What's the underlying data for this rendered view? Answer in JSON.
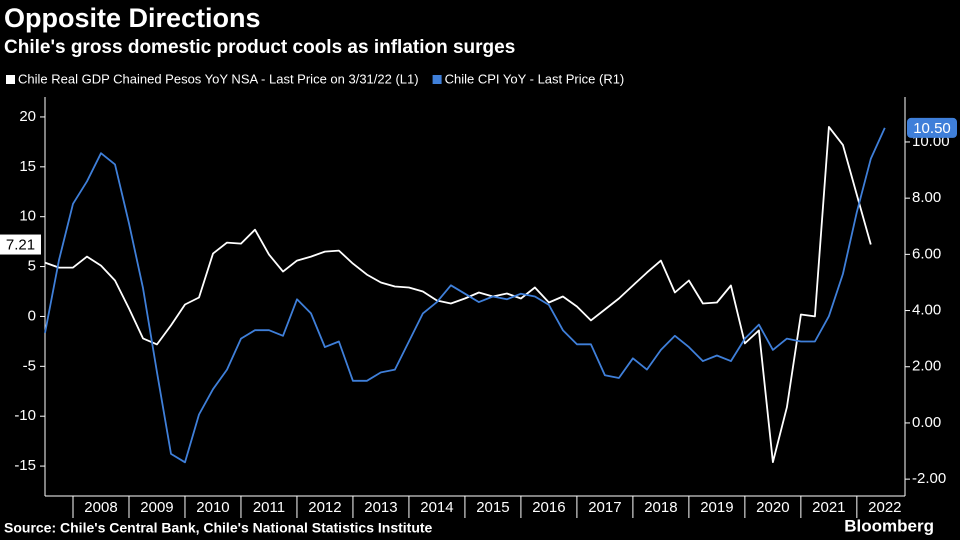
{
  "chart_data": {
    "type": "line",
    "title": "Opposite Directions",
    "subtitle": "Chile's gross domestic product cools as inflation surges",
    "source": "Source: Chile's Central Bank, Chile's National Statistics Institute",
    "brand": "Bloomberg",
    "categories": [
      "2008",
      "2009",
      "2010",
      "2011",
      "2012",
      "2013",
      "2014",
      "2015",
      "2016",
      "2017",
      "2018",
      "2019",
      "2020",
      "2021",
      "2022"
    ],
    "xlim": [
      2007.5,
      2022.86
    ],
    "xticks": [
      2008,
      2009,
      2010,
      2011,
      2012,
      2013,
      2014,
      2015,
      2016,
      2017,
      2018,
      2019,
      2020,
      2021,
      2022
    ],
    "ylim": [
      -18,
      22
    ],
    "yticks": [
      -15,
      -10,
      -5,
      0,
      5,
      10,
      15,
      20
    ],
    "y2lim": [
      -2.6,
      11.6
    ],
    "y2ticks": [
      {
        "value": -2,
        "label": "-2.00"
      },
      {
        "value": 0,
        "label": "0.00"
      },
      {
        "value": 2,
        "label": "2.00"
      },
      {
        "value": 4,
        "label": "4.00"
      },
      {
        "value": 6,
        "label": "6.00"
      },
      {
        "value": 8,
        "label": "8.00"
      },
      {
        "value": 10,
        "label": "10.00"
      }
    ],
    "grid": false,
    "series": [
      {
        "name": "Chile Real GDP Chained Pesos YoY NSA - Last Price on 3/31/22 (L1)",
        "color": "#ffffff",
        "axis": "y",
        "x": [
          2007.5,
          2007.75,
          2008,
          2008.25,
          2008.5,
          2008.75,
          2009,
          2009.25,
          2009.5,
          2009.75,
          2010,
          2010.25,
          2010.5,
          2010.75,
          2011,
          2011.25,
          2011.5,
          2011.75,
          2012,
          2012.25,
          2012.5,
          2012.75,
          2013,
          2013.25,
          2013.5,
          2013.75,
          2014,
          2014.25,
          2014.5,
          2014.75,
          2015,
          2015.25,
          2015.5,
          2015.75,
          2016,
          2016.25,
          2016.5,
          2016.75,
          2017,
          2017.25,
          2017.5,
          2017.75,
          2018,
          2018.25,
          2018.5,
          2018.75,
          2019,
          2019.25,
          2019.5,
          2019.75,
          2020,
          2020.25,
          2020.5,
          2020.75,
          2021,
          2021.25,
          2021.5,
          2021.75,
          2022,
          2022.25
        ],
        "values": [
          5.4,
          4.9,
          4.9,
          6.0,
          5.1,
          3.6,
          0.8,
          -2.2,
          -2.8,
          -0.9,
          1.2,
          1.9,
          6.3,
          7.4,
          7.3,
          8.7,
          6.2,
          4.5,
          5.6,
          6.0,
          6.5,
          6.6,
          5.3,
          4.2,
          3.4,
          3.0,
          2.9,
          2.5,
          1.6,
          1.3,
          1.8,
          2.4,
          2.0,
          2.3,
          1.8,
          2.9,
          1.4,
          2.0,
          1.0,
          -0.4,
          0.7,
          1.8,
          3.1,
          4.4,
          5.6,
          2.4,
          3.6,
          1.3,
          1.4,
          3.1,
          -2.7,
          -1.4,
          -14.6,
          -9.1,
          0.2,
          0.0,
          19.0,
          17.2,
          12.2,
          7.21
        ]
      },
      {
        "name": "Chile CPI YoY - Last Price (R1)",
        "color": "#3f7fd9",
        "axis": "y2",
        "x": [
          2007.5,
          2007.75,
          2008,
          2008.25,
          2008.5,
          2008.75,
          2009,
          2009.25,
          2009.5,
          2009.75,
          2010,
          2010.25,
          2010.5,
          2010.75,
          2011,
          2011.25,
          2011.5,
          2011.75,
          2012,
          2012.25,
          2012.5,
          2012.75,
          2013,
          2013.25,
          2013.5,
          2013.75,
          2014,
          2014.25,
          2014.5,
          2014.75,
          2015,
          2015.25,
          2015.5,
          2015.75,
          2016,
          2016.25,
          2016.5,
          2016.75,
          2017,
          2017.25,
          2017.5,
          2017.75,
          2018,
          2018.25,
          2018.5,
          2018.75,
          2019,
          2019.25,
          2019.5,
          2019.75,
          2020,
          2020.25,
          2020.5,
          2020.75,
          2021,
          2021.25,
          2021.5,
          2021.75,
          2022,
          2022.25,
          2022.5
        ],
        "values": [
          3.2,
          5.8,
          7.8,
          8.6,
          9.6,
          9.2,
          7.1,
          4.8,
          1.8,
          -1.1,
          -1.4,
          0.3,
          1.2,
          1.9,
          3.0,
          3.3,
          3.3,
          3.1,
          4.4,
          3.9,
          2.7,
          2.9,
          1.5,
          1.5,
          1.8,
          1.9,
          2.9,
          3.9,
          4.3,
          4.9,
          4.6,
          4.3,
          4.5,
          4.4,
          4.6,
          4.5,
          4.2,
          3.3,
          2.8,
          2.8,
          1.7,
          1.6,
          2.3,
          1.9,
          2.6,
          3.1,
          2.7,
          2.2,
          2.4,
          2.2,
          3.0,
          3.5,
          2.6,
          3.0,
          2.9,
          2.9,
          3.8,
          5.3,
          7.5,
          9.4,
          10.5
        ],
        "value_labels": [
          null,
          null,
          null,
          null,
          null,
          null,
          null,
          null,
          null,
          null,
          null,
          null,
          null,
          null,
          null,
          null,
          null,
          null,
          null,
          null,
          null,
          null,
          null,
          null,
          null,
          null,
          null,
          null,
          null,
          null,
          null,
          null,
          null,
          null,
          null,
          null,
          null,
          null,
          null,
          null,
          null,
          null,
          null,
          null,
          null,
          null,
          null,
          null,
          null,
          null,
          null,
          null,
          null,
          null,
          null,
          null,
          null,
          null,
          null,
          null,
          "10.50"
        ]
      }
    ]
  }
}
